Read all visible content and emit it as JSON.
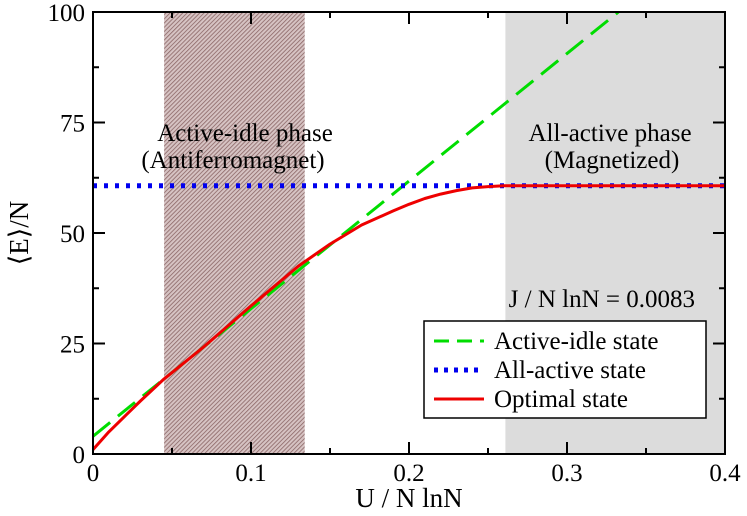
{
  "chart_data": {
    "type": "line",
    "title": "",
    "xlabel": "U / N lnN",
    "ylabel": "⟨E⟩/N",
    "xlim": [
      0,
      0.4
    ],
    "ylim": [
      0,
      100
    ],
    "xticks": [
      0,
      0.1,
      0.2,
      0.3,
      0.4
    ],
    "xtick_labels": [
      "0",
      "0.1",
      "0.2",
      "0.3",
      "0.4"
    ],
    "yticks": [
      0,
      25,
      50,
      75,
      100
    ],
    "ytick_labels": [
      "0",
      "25",
      "50",
      "75",
      "100"
    ],
    "grid": false,
    "legend_position": "bottom-right",
    "shaded_regions": [
      {
        "x": [
          0.045,
          0.134
        ],
        "color": "#b08f8f",
        "pattern": "hatched",
        "label_lines": [
          "Active-idle phase",
          "(Antiferromagnet)"
        ]
      },
      {
        "x": [
          0.261,
          0.4
        ],
        "color": "#dcdcdc",
        "pattern": "solid",
        "label_lines": [
          "All-active phase",
          "(Magnetized)"
        ]
      }
    ],
    "parameter_text": "J / N lnN = 0.0083",
    "series": [
      {
        "name": "Active-idle state",
        "color": "#00dd00",
        "style": "dashed",
        "x": [
          0,
          0.3325
        ],
        "y": [
          4.0,
          100.0
        ]
      },
      {
        "name": "All-active state",
        "color": "#0000ee",
        "style": "dotted",
        "x": [
          0,
          0.4
        ],
        "y": [
          60.7,
          60.7
        ]
      },
      {
        "name": "Optimal state",
        "color": "#ee0000",
        "style": "solid",
        "x": [
          0,
          0.005,
          0.01,
          0.02,
          0.03,
          0.045,
          0.07,
          0.1,
          0.13,
          0.15,
          0.17,
          0.19,
          0.2,
          0.21,
          0.22,
          0.23,
          0.24,
          0.25,
          0.26,
          0.3,
          0.35,
          0.4
        ],
        "y": [
          1.0,
          3.0,
          5.0,
          8.5,
          12.0,
          17.0,
          24.2,
          33.5,
          42.5,
          47.5,
          51.8,
          55.0,
          56.5,
          57.8,
          58.8,
          59.6,
          60.2,
          60.5,
          60.7,
          60.7,
          60.7,
          60.7
        ]
      }
    ]
  }
}
